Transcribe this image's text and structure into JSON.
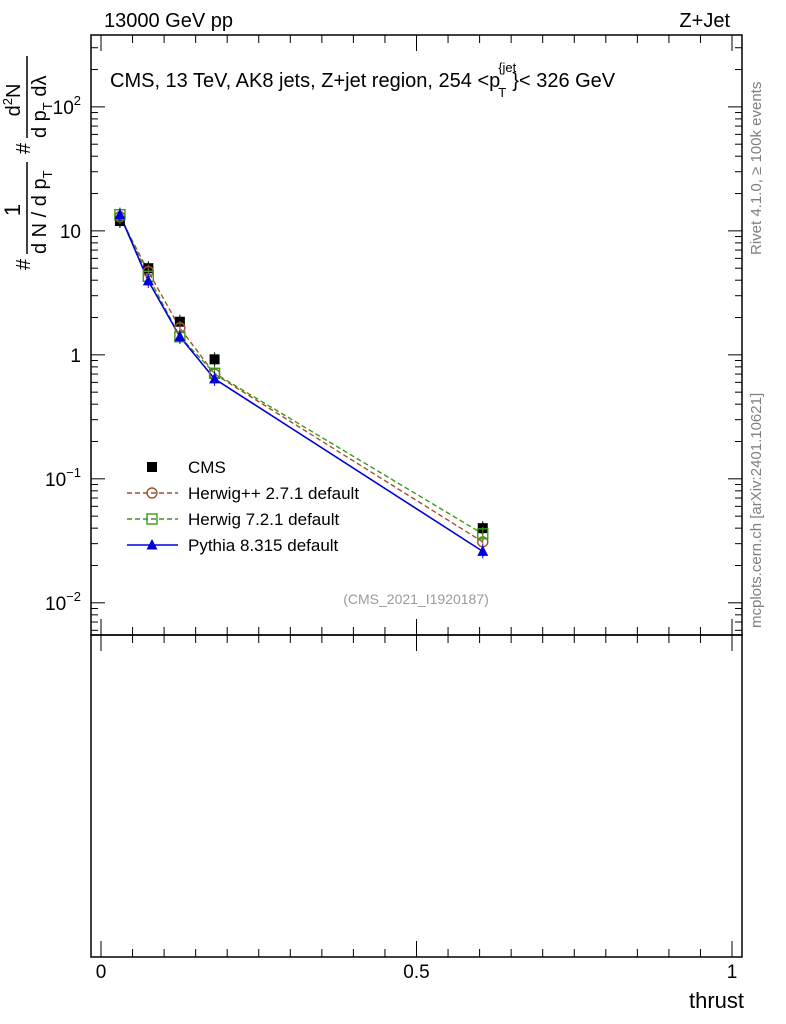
{
  "header": {
    "left": "13000 GeV pp",
    "right": "Z+Jet"
  },
  "side_text": {
    "rivet": "Rivet 4.1.0, ≥ 100k events",
    "mcplots": "mcplots.cern.ch [arXiv:2401.10621]"
  },
  "watermark": "(CMS_2021_I1920187)",
  "colors": {
    "cms": "#000000",
    "herwigpp": "#a0522d",
    "herwig7": "#3a9a1a",
    "pythia": "#0000dd"
  },
  "chart_data": {
    "type": "line",
    "title_parts": {
      "before": "CMS, 13 TeV, AK8 jets, Z+jet region, 254 <p",
      "sub": "T",
      "sup": "{jet",
      "after": "}< 326 GeV"
    },
    "xlabel": "thrust",
    "ylabel_parts": {
      "hash": "#",
      "one": "1",
      "den": "d N / d p",
      "den_sub": "T",
      "hash2": "#",
      "num2": "d",
      "num2_sup": "2",
      "num2_rest": "N",
      "den2": "d p",
      "den2_sub": "T",
      "den2_rest": " dλ"
    },
    "xlim": [
      0,
      1
    ],
    "ylim_log": [
      0.0055,
      380
    ],
    "x_ticks": [
      {
        "value": 0,
        "label": "0"
      },
      {
        "value": 0.5,
        "label": "0.5"
      },
      {
        "value": 1,
        "label": "1"
      }
    ],
    "y_ticks": [
      {
        "value": 0.01,
        "base": "10",
        "exp": "−2"
      },
      {
        "value": 0.1,
        "base": "10",
        "exp": "−1"
      },
      {
        "value": 1,
        "base": "1",
        "exp": ""
      },
      {
        "value": 10,
        "base": "10",
        "exp": ""
      },
      {
        "value": 100,
        "base": "10",
        "exp": "2"
      }
    ],
    "series": [
      {
        "name": "CMS",
        "key": "cms",
        "marker": "square-filled",
        "line": "none",
        "x": [
          0.03,
          0.075,
          0.125,
          0.18,
          0.605
        ],
        "y": [
          12.0,
          5.0,
          1.85,
          0.92,
          0.04
        ]
      },
      {
        "name": "Herwig++ 2.7.1 default",
        "key": "herwigpp",
        "marker": "circle-open",
        "line": "dashed",
        "x": [
          0.03,
          0.075,
          0.125,
          0.18,
          0.605
        ],
        "y": [
          13.0,
          4.7,
          1.65,
          0.7,
          0.031
        ]
      },
      {
        "name": "Herwig 7.2.1 default",
        "key": "herwig7",
        "marker": "square-open",
        "line": "dashed",
        "x": [
          0.03,
          0.075,
          0.125,
          0.18,
          0.605
        ],
        "y": [
          13.5,
          4.3,
          1.4,
          0.71,
          0.036
        ]
      },
      {
        "name": "Pythia 8.315 default",
        "key": "pythia",
        "marker": "triangle-filled",
        "line": "solid",
        "x": [
          0.03,
          0.075,
          0.125,
          0.18,
          0.605
        ],
        "y": [
          13.5,
          3.95,
          1.4,
          0.64,
          0.026
        ]
      }
    ],
    "legend_position": "lower-left"
  }
}
